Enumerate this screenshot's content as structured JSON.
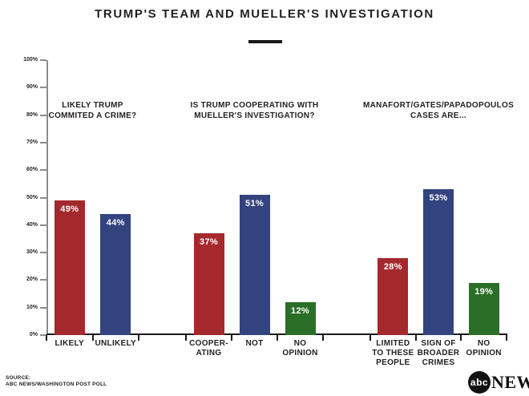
{
  "header": {
    "title": "TRUMP'S TEAM AND MUELLER'S INVESTIGATION"
  },
  "colors": {
    "red": "#A3292C",
    "blue": "#32437F",
    "green": "#2B6E28",
    "axis_gray": "#8C8C8C",
    "text": "#231F20"
  },
  "chart_data": {
    "type": "bar",
    "title": "TRUMP'S TEAM AND MUELLER'S INVESTIGATION",
    "ylabel": "",
    "ylim": [
      0,
      100
    ],
    "y_tick_step": 10,
    "y_tick_labels": [
      "0%",
      "10%",
      "20%",
      "30%",
      "40%",
      "50%",
      "60%",
      "70%",
      "80%",
      "90%",
      "100%"
    ],
    "grid": false,
    "groups": [
      {
        "question_lines": [
          "LIKELY TRUMP",
          "COMMITED A CRIME?"
        ],
        "bars": [
          {
            "label_lines": [
              "LIKELY"
            ],
            "value": 49,
            "display": "49%",
            "color": "red"
          },
          {
            "label_lines": [
              "UNLIKELY"
            ],
            "value": 44,
            "display": "44%",
            "color": "blue"
          }
        ]
      },
      {
        "question_lines": [
          "IS TRUMP COOPERATING WITH",
          "MUELLER'S INVESTIGATION?"
        ],
        "bars": [
          {
            "label_lines": [
              "COOPER-",
              "ATING"
            ],
            "value": 37,
            "display": "37%",
            "color": "red"
          },
          {
            "label_lines": [
              "NOT"
            ],
            "value": 51,
            "display": "51%",
            "color": "blue"
          },
          {
            "label_lines": [
              "NO",
              "OPINION"
            ],
            "value": 12,
            "display": "12%",
            "color": "green"
          }
        ]
      },
      {
        "question_lines": [
          "MANAFORT/GATES/PAPADOPOULOS",
          "CASES ARE..."
        ],
        "bars": [
          {
            "label_lines": [
              "LIMITED",
              "TO THESE",
              "PEOPLE"
            ],
            "value": 28,
            "display": "28%",
            "color": "red"
          },
          {
            "label_lines": [
              "SIGN OF",
              "BROADER",
              "CRIMES"
            ],
            "value": 53,
            "display": "53%",
            "color": "blue"
          },
          {
            "label_lines": [
              "NO",
              "OPINION"
            ],
            "value": 19,
            "display": "19%",
            "color": "green"
          }
        ]
      }
    ]
  },
  "footer": {
    "source_label": "SOURCE:",
    "source_text": "ABC NEWS/WASHINGTON POST POLL",
    "logo_abc": "abc",
    "logo_news": "NEWS"
  }
}
